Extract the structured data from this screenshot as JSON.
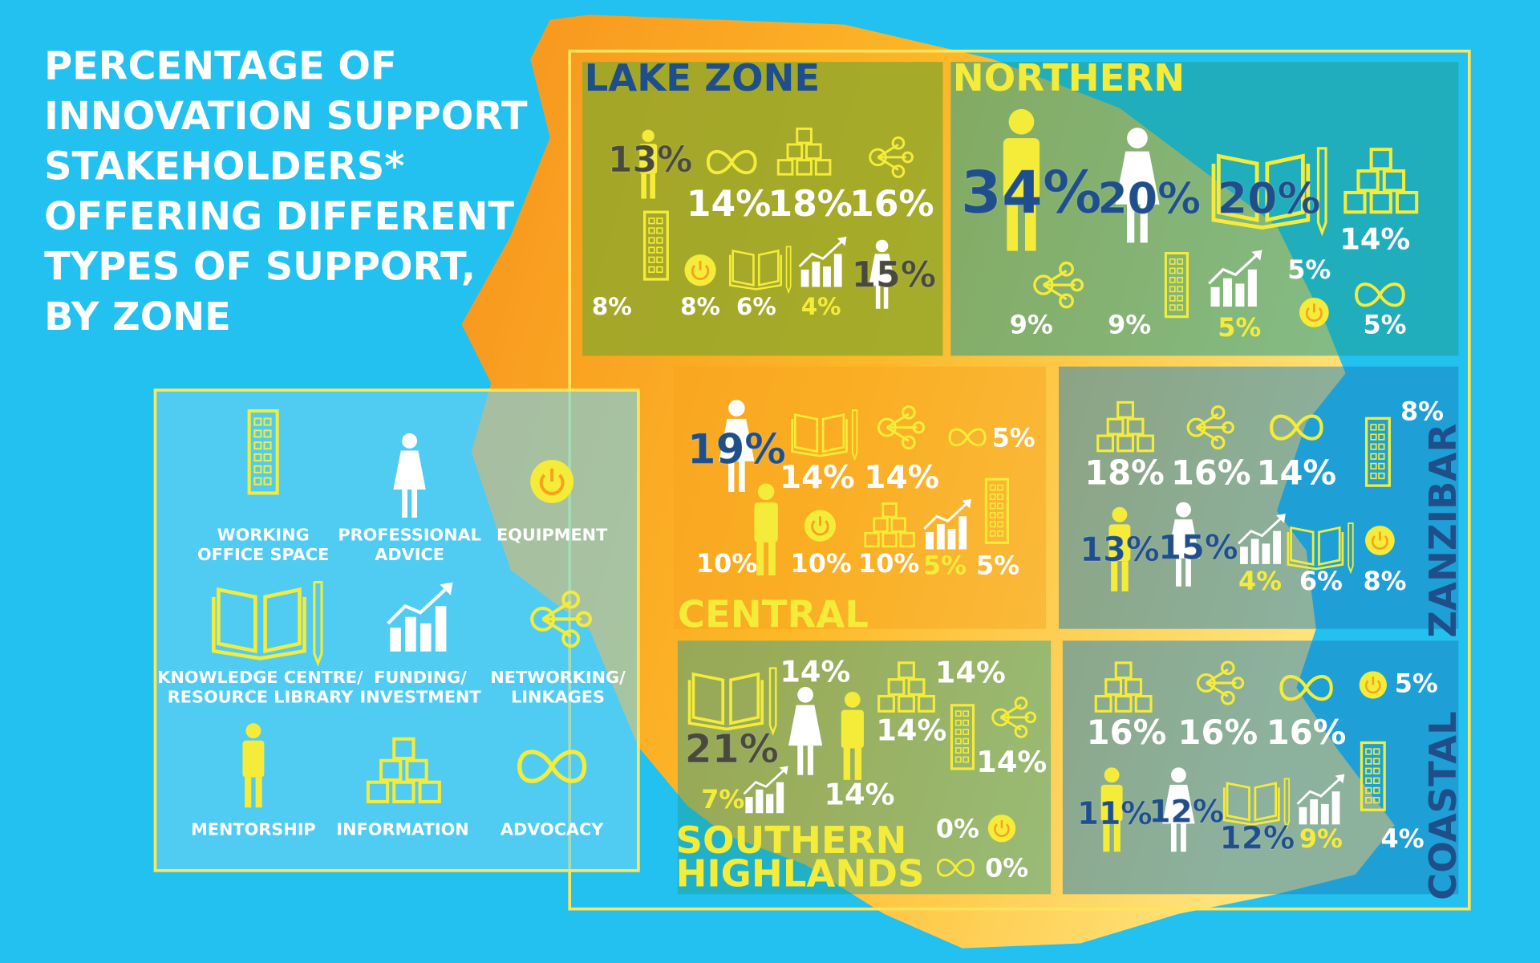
{
  "title": [
    "PERCENTAGE OF",
    "INNOVATION SUPPORT",
    "STAKEHOLDERS*",
    "OFFERING DIFFERENT",
    "TYPES OF SUPPORT,",
    "BY ZONE"
  ],
  "legend": [
    [
      "WORKING",
      "OFFICE SPACE"
    ],
    [
      "PROFESSIONAL",
      "ADVICE"
    ],
    [
      "EQUIPMENT"
    ],
    [
      "KNOWLEDGE CENTRE/",
      "RESOURCE LIBRARY"
    ],
    [
      "FUNDING/",
      "INVESTMENT"
    ],
    [
      "NETWORKING/",
      "LINKAGES"
    ],
    [
      "MENTORSHIP"
    ],
    [
      "INFORMATION"
    ],
    [
      "ADVOCACY"
    ]
  ],
  "zones": [
    {
      "name": [
        "LAKE ZONE"
      ],
      "values": [
        "8%",
        "15%",
        "8%",
        "6%",
        "4%",
        "16%",
        "13%",
        "18%",
        "14%"
      ]
    },
    {
      "name": [
        "NORTHERN"
      ],
      "values": [
        "9%",
        "20%",
        "5%",
        "20%",
        "5%",
        "9%",
        "34%",
        "14%",
        "5%"
      ]
    },
    {
      "name": [
        "CENTRAL"
      ],
      "values": [
        "5%",
        "19%",
        "10%",
        "14%",
        "5%",
        "14%",
        "10%",
        "10%",
        "5%"
      ]
    },
    {
      "name": [
        "ZANZIBAR"
      ],
      "values": [
        "8%",
        "15%",
        "8%",
        "6%",
        "4%",
        "16%",
        "13%",
        "18%",
        "14%"
      ]
    },
    {
      "name": [
        "SOUTHERN",
        "HIGHLANDS"
      ],
      "values": [
        "14%",
        "14%",
        "0%",
        "21%",
        "7%",
        "14%",
        "14%",
        "14%",
        "0%"
      ]
    },
    {
      "name": [
        "COASTAL"
      ],
      "values": [
        "4%",
        "12%",
        "5%",
        "12%",
        "9%",
        "16%",
        "11%",
        "16%",
        "16%"
      ]
    }
  ]
}
